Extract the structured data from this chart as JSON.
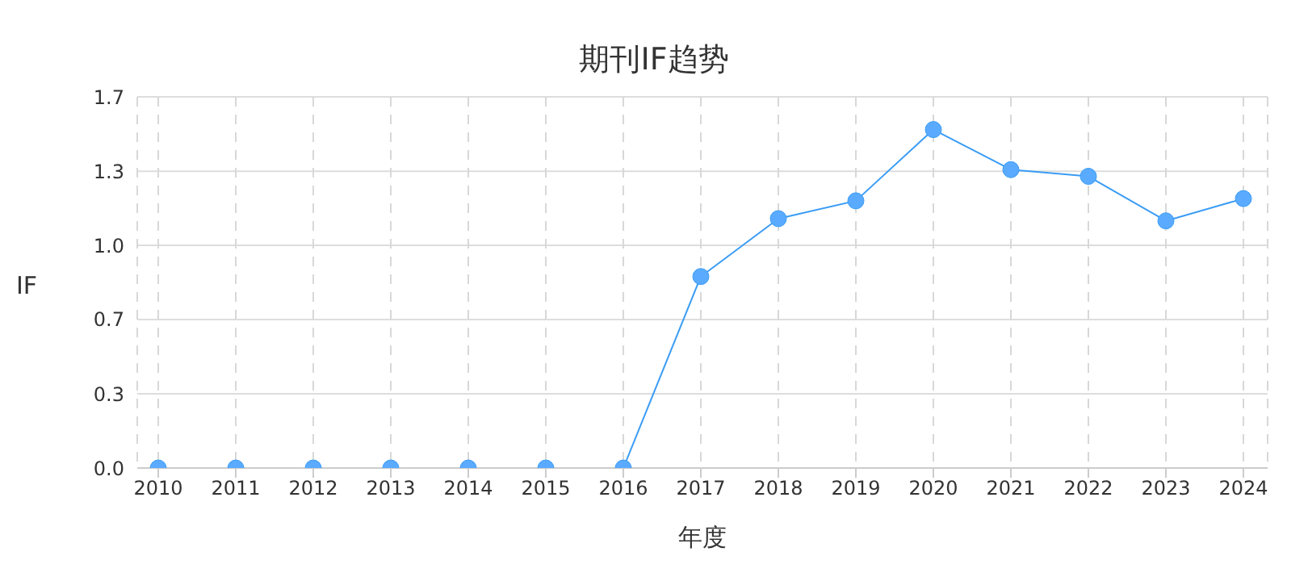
{
  "chart_data": {
    "type": "line",
    "title": "期刊IF趋势",
    "xlabel": "年度",
    "ylabel": "IF",
    "categories": [
      "2010",
      "2011",
      "2012",
      "2013",
      "2014",
      "2015",
      "2016",
      "2017",
      "2018",
      "2019",
      "2020",
      "2021",
      "2022",
      "2023",
      "2024"
    ],
    "series": [
      {
        "color": "#3a9cf5",
        "values": [
          0,
          0,
          0,
          0,
          0,
          0,
          0,
          0.86,
          1.12,
          1.2,
          1.52,
          1.34,
          1.31,
          1.11,
          1.21
        ]
      }
    ],
    "ylim": [
      0,
      1.667
    ],
    "yticks": [
      {
        "value": 0,
        "label": "0.0"
      },
      {
        "value": 0.333,
        "label": "0.3"
      },
      {
        "value": 0.667,
        "label": "0.7"
      },
      {
        "value": 1,
        "label": "1.0"
      },
      {
        "value": 1.333,
        "label": "1.3"
      },
      {
        "value": 1.667,
        "label": "1.7"
      }
    ],
    "grid": true,
    "marker": "circle",
    "line_style": "solid"
  }
}
